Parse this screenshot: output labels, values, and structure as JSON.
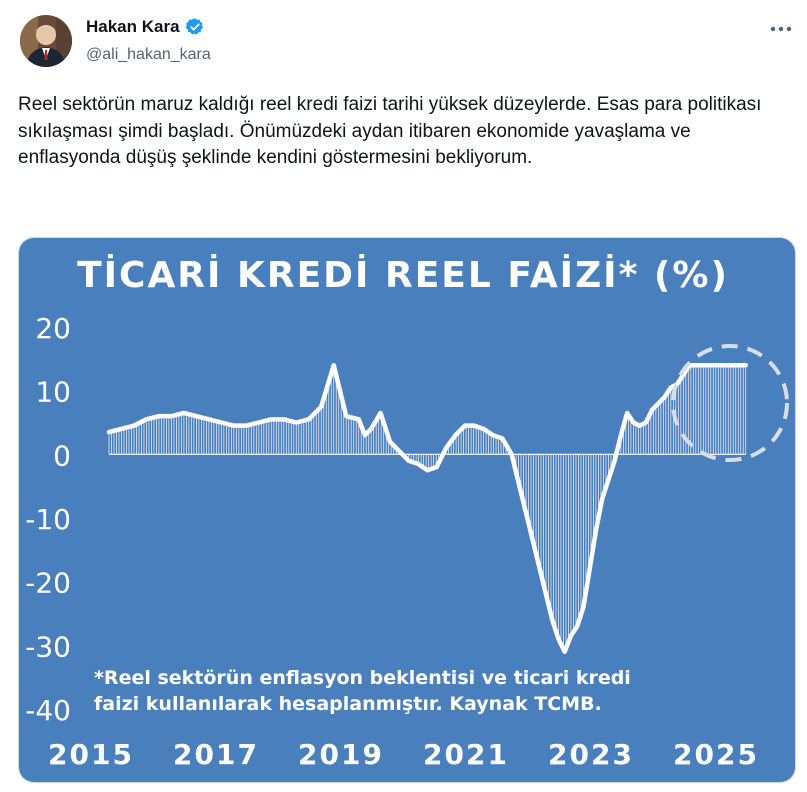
{
  "author": {
    "name": "Hakan Kara",
    "handle": "@ali_hakan_kara",
    "verified": true,
    "avatar_icon": "person-avatar"
  },
  "more_icon": "more-dots-icon",
  "tweet_text": "Reel sektörün maruz kaldığı reel kredi faizi tarihi yüksek düzeylerde. Esas para politikası sıkılaşması şimdi başladı. Önümüzdeki aydan itibaren ekonomide yavaşlama ve enflasyonda düşüş şeklinde kendini göstermesini bekliyorum.",
  "colors": {
    "chart_bg": "#4a7fbd",
    "line": "#ffffff",
    "verified": "#1d9bf0",
    "circle": "#d8dee8"
  },
  "chart_data": {
    "type": "area",
    "title": "TİCARİ KREDİ REEL FAİZİ* (%)",
    "footnote_line1": "*Reel sektörün enflasyon beklentisi ve ticari kredi",
    "footnote_line2": "faizi kullanılarak hesaplanmıştır. Kaynak TCMB.",
    "x_ticks": [
      "2015",
      "2017",
      "2019",
      "2021",
      "2023",
      "2025"
    ],
    "y_ticks": [
      "20",
      "10",
      "0",
      "-10",
      "-20",
      "-30",
      "-40"
    ],
    "ylim": [
      -40,
      20
    ],
    "xlim": [
      2015.0,
      2025.3
    ],
    "grid": false,
    "highlight": "dashed circle around the final 2024–2025 values",
    "series": [
      {
        "x": [
          2015.0,
          2015.2,
          2015.4,
          2015.6,
          2015.8,
          2016.0,
          2016.2,
          2016.4,
          2016.6,
          2016.8,
          2017.0,
          2017.2,
          2017.4,
          2017.6,
          2017.8,
          2018.0,
          2018.2,
          2018.4,
          2018.6,
          2018.8,
          2019.0,
          2019.1,
          2019.2,
          2019.35,
          2019.5,
          2019.65,
          2019.8,
          2019.95,
          2020.1,
          2020.25,
          2020.4,
          2020.55,
          2020.7,
          2020.85,
          2021.0,
          2021.15,
          2021.3,
          2021.45,
          2021.6,
          2021.75,
          2021.9,
          2022.0,
          2022.1,
          2022.2,
          2022.3,
          2022.4,
          2022.5,
          2022.6,
          2022.7,
          2022.8,
          2022.9,
          2023.0,
          2023.1,
          2023.2,
          2023.3,
          2023.4,
          2023.5,
          2023.6,
          2023.7,
          2023.8,
          2023.9,
          2024.0,
          2024.1,
          2024.2,
          2024.3,
          2024.4,
          2024.5,
          2024.6,
          2024.7,
          2024.8,
          2024.9,
          2025.0,
          2025.1,
          2025.2
        ],
        "values": [
          3.5,
          4.0,
          4.5,
          5.5,
          6.0,
          6.0,
          6.5,
          6.0,
          5.5,
          5.0,
          4.5,
          4.5,
          5.0,
          5.5,
          5.5,
          5.0,
          5.5,
          7.5,
          14.0,
          6.0,
          5.5,
          3.0,
          4.0,
          6.5,
          2.0,
          0.5,
          -1.0,
          -1.5,
          -2.5,
          -2.0,
          1.0,
          3.0,
          4.5,
          4.5,
          4.0,
          3.0,
          2.5,
          0.0,
          -6.0,
          -12.0,
          -18.0,
          -22.0,
          -26.0,
          -29.0,
          -31.0,
          -28.5,
          -27.0,
          -24.0,
          -18.0,
          -12.0,
          -7.0,
          -4.0,
          -1.0,
          3.0,
          6.5,
          5.0,
          4.5,
          5.0,
          7.0,
          8.0,
          9.0,
          10.5,
          11.0,
          12.5,
          14.0,
          14.0,
          14.0,
          14.0,
          14.0,
          14.0,
          14.0,
          14.0,
          14.0,
          14.0
        ]
      }
    ]
  }
}
